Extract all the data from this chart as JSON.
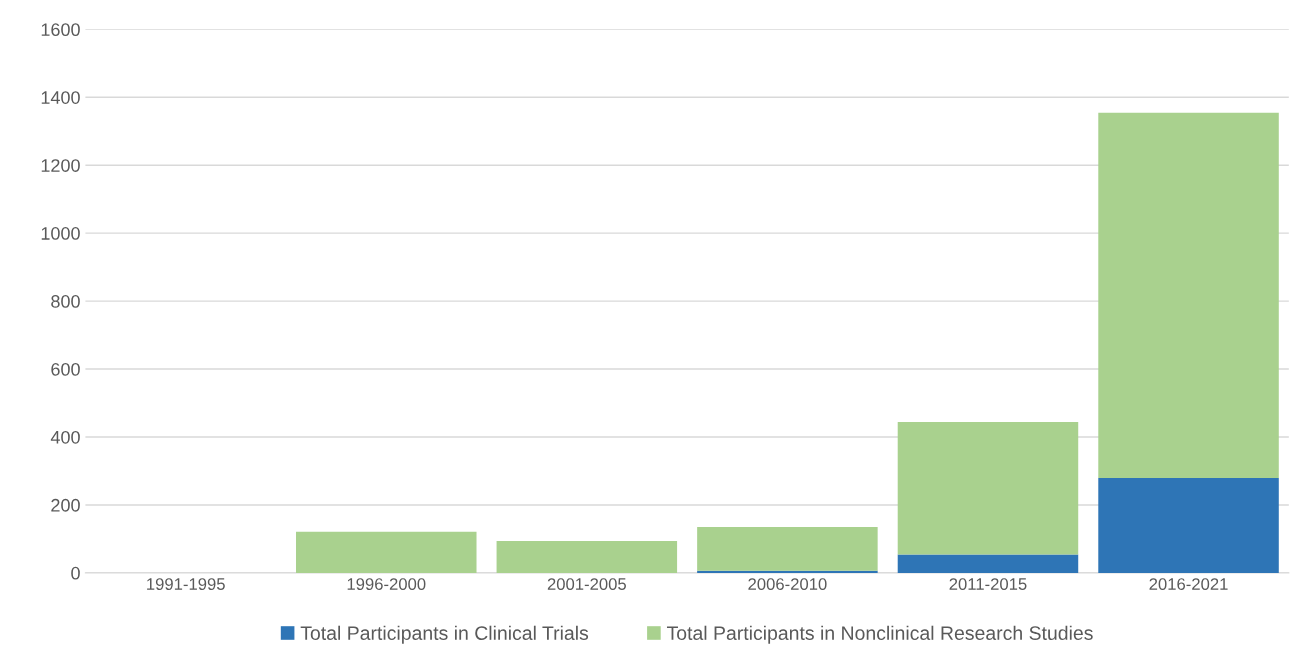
{
  "chart_data": {
    "type": "bar",
    "stacked": true,
    "categories": [
      "1991-1995",
      "1996-2000",
      "2001-2005",
      "2006-2010",
      "2011-2015",
      "2016-2021"
    ],
    "series": [
      {
        "name": "Total Participants in Clinical Trials",
        "color": "#2e75b6",
        "values": [
          0,
          0,
          0,
          6,
          54,
          279
        ]
      },
      {
        "name": "Total Participants in Nonclinical Research Studies",
        "color": "#a9d18e",
        "values": [
          0,
          121,
          94,
          129,
          390,
          1075
        ]
      }
    ],
    "ylim": [
      0,
      1600
    ],
    "yticks": [
      0,
      200,
      400,
      600,
      800,
      1000,
      1200,
      1400,
      1600
    ],
    "grid": "y",
    "legend": "bottom"
  }
}
